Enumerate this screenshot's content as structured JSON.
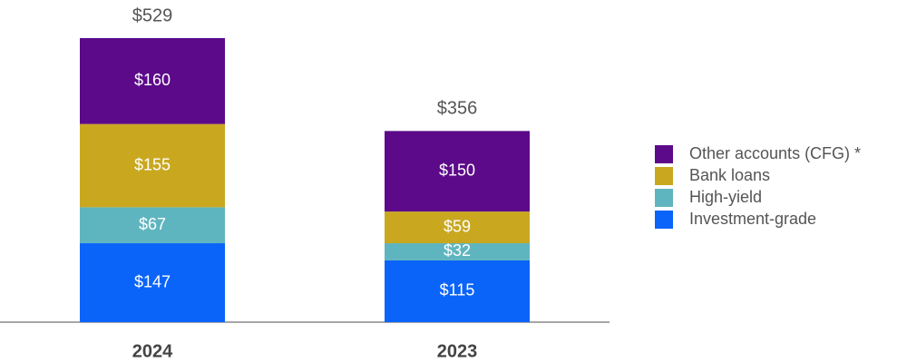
{
  "chart_data": {
    "type": "stacked-bar",
    "categories": [
      "2024",
      "2023"
    ],
    "series": [
      {
        "name": "Investment-grade",
        "color": "#0a64fa",
        "values": [
          147,
          115
        ],
        "value_labels": [
          "$147",
          "$115"
        ]
      },
      {
        "name": "High-yield",
        "color": "#5fb5bf",
        "values": [
          67,
          32
        ],
        "value_labels": [
          "$67",
          "$32"
        ]
      },
      {
        "name": "Bank loans",
        "color": "#c9a820",
        "values": [
          155,
          59
        ],
        "value_labels": [
          "$155",
          "$59"
        ]
      },
      {
        "name": "Other accounts (CFG) *",
        "color": "#5c0a8a",
        "values": [
          160,
          150
        ],
        "value_labels": [
          "$160",
          "$150"
        ]
      }
    ],
    "totals": [
      529,
      356
    ],
    "total_labels": [
      "$529",
      "$356"
    ],
    "legend": "right"
  }
}
